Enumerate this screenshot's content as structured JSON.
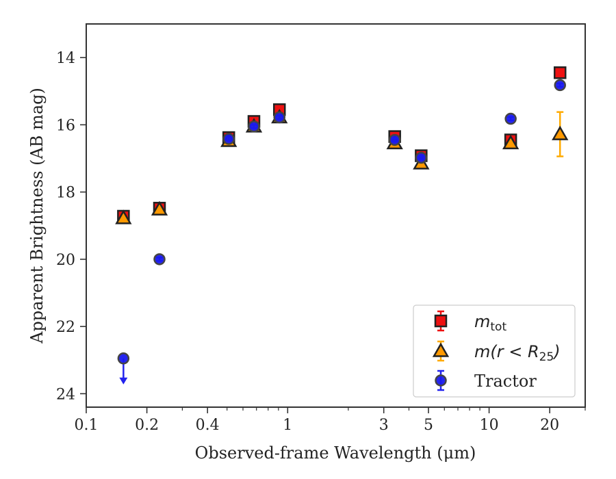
{
  "chart_data": {
    "type": "scatter",
    "xlabel": "Observed-frame Wavelength (μm)",
    "ylabel": "Apparent Brightness (AB mag)",
    "xscale": "log",
    "xlim": [
      0.1,
      30
    ],
    "ylim": [
      24.4,
      13.0
    ],
    "y_inverted": true,
    "xticks": [
      {
        "value": 0.1,
        "label": "0.1"
      },
      {
        "value": 0.2,
        "label": "0.2"
      },
      {
        "value": 0.4,
        "label": "0.4"
      },
      {
        "value": 1,
        "label": "1"
      },
      {
        "value": 3,
        "label": "3"
      },
      {
        "value": 5,
        "label": "5"
      },
      {
        "value": 10,
        "label": "10"
      },
      {
        "value": 20,
        "label": "20"
      }
    ],
    "yticks": [
      {
        "value": 14,
        "label": "14"
      },
      {
        "value": 16,
        "label": "16"
      },
      {
        "value": 18,
        "label": "18"
      },
      {
        "value": 20,
        "label": "20"
      },
      {
        "value": 22,
        "label": "22"
      },
      {
        "value": 24,
        "label": "24"
      }
    ],
    "legend_position": "lower-right",
    "grid": false,
    "series": [
      {
        "name": "m_tot",
        "legend_main": "m",
        "legend_sub": "tot",
        "marker": "square",
        "face_color": "#ee1111",
        "edge_color": "#222222",
        "err_color": "#ee1111",
        "points": [
          {
            "x": 0.153,
            "y": 18.72,
            "err": 0.08
          },
          {
            "x": 0.231,
            "y": 18.48,
            "err": 0.06
          },
          {
            "x": 0.51,
            "y": 16.38,
            "err": 0.05
          },
          {
            "x": 0.68,
            "y": 15.9,
            "err": 0.05
          },
          {
            "x": 0.91,
            "y": 15.55,
            "err": 0.05
          },
          {
            "x": 3.4,
            "y": 16.35,
            "err": 0.05
          },
          {
            "x": 4.6,
            "y": 16.92,
            "err": 0.05
          },
          {
            "x": 12.8,
            "y": 16.45,
            "err": 0.05
          },
          {
            "x": 22.5,
            "y": 14.45,
            "err": 0.05
          }
        ]
      },
      {
        "name": "m(r < R_25)",
        "legend_main": "m(r < R",
        "legend_sub": "25",
        "legend_tail": ")",
        "marker": "triangle",
        "face_color": "#ff9900",
        "edge_color": "#222222",
        "err_color": "#ffaa00",
        "points": [
          {
            "x": 0.153,
            "y": 18.78,
            "err": 0.05
          },
          {
            "x": 0.231,
            "y": 18.52,
            "err": 0.05
          },
          {
            "x": 0.51,
            "y": 16.48,
            "err": 0.05
          },
          {
            "x": 0.68,
            "y": 16.05,
            "err": 0.05
          },
          {
            "x": 0.91,
            "y": 15.78,
            "err": 0.05
          },
          {
            "x": 3.4,
            "y": 16.55,
            "err": 0.05
          },
          {
            "x": 4.6,
            "y": 17.15,
            "err": 0.05
          },
          {
            "x": 12.8,
            "y": 16.55,
            "err": 0.05
          },
          {
            "x": 22.5,
            "y": 16.28,
            "err": 0.66
          }
        ]
      },
      {
        "name": "Tractor",
        "legend_main": "Tractor",
        "marker": "circle",
        "face_color": "#1a1aee",
        "edge_color": "#444444",
        "err_color": "#2222ee",
        "points": [
          {
            "x": 0.153,
            "y": 22.95,
            "upper_limit": true
          },
          {
            "x": 0.231,
            "y": 20.0,
            "err": 0.05
          },
          {
            "x": 0.51,
            "y": 16.42,
            "err": 0.05
          },
          {
            "x": 0.68,
            "y": 16.05,
            "err": 0.05
          },
          {
            "x": 0.91,
            "y": 15.78,
            "err": 0.05
          },
          {
            "x": 3.4,
            "y": 16.45,
            "err": 0.05
          },
          {
            "x": 4.6,
            "y": 16.98,
            "err": 0.05
          },
          {
            "x": 12.8,
            "y": 15.82,
            "err": 0.05
          },
          {
            "x": 22.5,
            "y": 14.82,
            "err": 0.05
          }
        ]
      }
    ]
  }
}
